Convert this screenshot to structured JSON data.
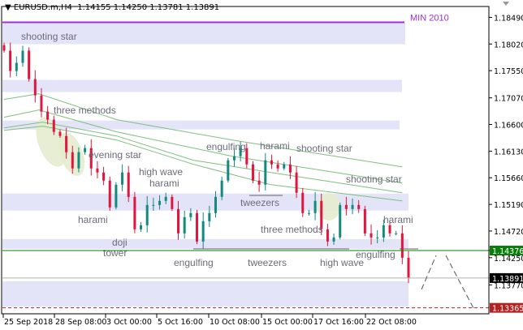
{
  "header": {
    "symbol": "EURUSD.m,H4",
    "ohlc": "1.14155 1.14250 1.13781 1.13891"
  },
  "chart_data": {
    "type": "candlestick",
    "title": "EURUSD.m,H4",
    "x_tick_labels": [
      "25 Sep 2018",
      "28 Sep 08:00",
      "3 Oct 00:00",
      "5 Oct 16:00",
      "10 Oct 08:00",
      "15 Oct 00:00",
      "17 Oct 16:00",
      "22 Oct 08:00"
    ],
    "y_tick_labels": [
      "1.18490",
      "1.18020",
      "1.17550",
      "1.17070",
      "1.16600",
      "1.16130",
      "1.15660",
      "1.15190",
      "1.14720",
      "1.14250",
      "1.13770"
    ],
    "ylim": [
      1.133,
      1.188
    ],
    "grid": false,
    "first_open": 1.18,
    "closes": [
      1.17903,
      1.17544,
      1.17688,
      1.17903,
      1.17401,
      1.17114,
      1.16828,
      1.16685,
      1.1647,
      1.16398,
      1.16111,
      1.15825,
      1.16111,
      1.16183,
      1.15825,
      1.15753,
      1.1561,
      1.15137,
      1.15538,
      1.15753,
      1.15323,
      1.1475,
      1.14822,
      1.1518,
      1.1518,
      1.15252,
      1.15323,
      1.15108,
      1.14679,
      1.14965,
      1.15037,
      1.14535,
      1.14893,
      1.15037,
      1.15323,
      1.1561,
      1.15968,
      1.1604,
      1.16183,
      1.15896,
      1.1561,
      1.15538,
      1.15968,
      1.15896,
      1.15825,
      1.15896,
      1.15753,
      1.15395,
      1.15037,
      1.15037,
      1.15252,
      1.1475,
      1.14535,
      1.14607,
      1.1518,
      1.15108,
      1.1518,
      1.15108,
      1.14679,
      1.14607,
      1.14607,
      1.14822,
      1.14679,
      1.14679,
      1.14249,
      1.13891
    ],
    "bull_color": "#138a80",
    "bear_color": "#e0163f",
    "moving_averages": [
      {
        "points": [
          [
            0,
            1.17043
          ],
          [
            5.6,
            1.17143
          ],
          [
            18.1,
            1.16685
          ],
          [
            36.7,
            1.16326
          ],
          [
            49,
            1.16111
          ],
          [
            64,
            1.15854
          ]
        ]
      },
      {
        "points": [
          [
            0,
            1.16728
          ],
          [
            5.6,
            1.16857
          ],
          [
            18.1,
            1.1647
          ],
          [
            36.7,
            1.1604
          ],
          [
            64,
            1.15567
          ]
        ]
      },
      {
        "points": [
          [
            0,
            1.16541
          ],
          [
            6.2,
            1.16642
          ],
          [
            18.1,
            1.16398
          ],
          [
            30.5,
            1.15968
          ],
          [
            42.9,
            1.15753
          ],
          [
            64,
            1.15395
          ]
        ]
      },
      {
        "points": [
          [
            0,
            1.16498
          ],
          [
            6.2,
            1.1657
          ],
          [
            18.1,
            1.16326
          ],
          [
            30.5,
            1.15896
          ],
          [
            42.9,
            1.15538
          ],
          [
            64,
            1.15252
          ]
        ]
      }
    ],
    "ma_color": "#7fbf7f",
    "zones": [
      [
        1.18404,
        1.18017
      ],
      [
        1.17387,
        1.17172
      ],
      [
        1.1667,
        1.16513
      ],
      [
        1.15381,
        1.1508
      ],
      [
        1.14578,
        1.14406
      ],
      [
        1.13833,
        1.13389
      ]
    ],
    "zone_color": "#e4e4f8",
    "levels": [
      {
        "label": "MIN 2010",
        "price": 1.18404,
        "color": "#9b30d9"
      },
      {
        "price": 1.14376,
        "color": "#0a7d0a",
        "tag": "1.14376"
      },
      {
        "price": 1.13891,
        "color": "#b0b0b0",
        "tag": "1.13891",
        "tag_bg": "#000000"
      },
      {
        "price": 1.13365,
        "color": "#b22222",
        "tag": "1.13365",
        "dashed": true
      }
    ],
    "annotations": [
      "shooting star",
      "three methods",
      "evening star",
      "high wave",
      "harami",
      "harami",
      "doji",
      "tower",
      "engulfing",
      "tweezers",
      "high wave",
      "engulfing",
      "engulfing",
      "harami",
      "shooting star",
      "tweezers",
      "three methods",
      "shooting star",
      "harami"
    ]
  }
}
